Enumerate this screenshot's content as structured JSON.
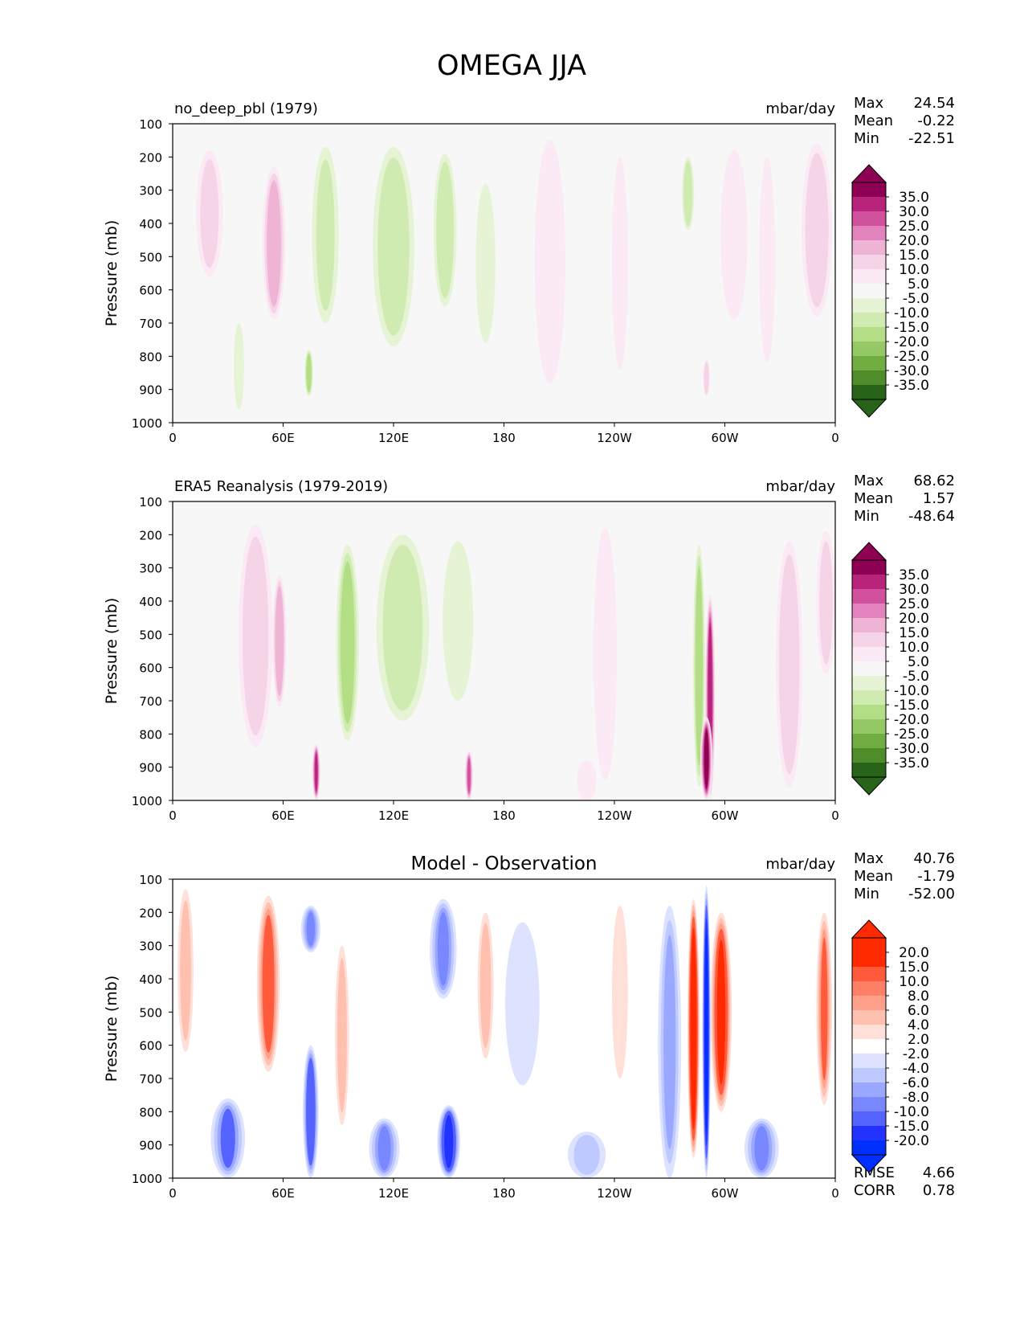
{
  "figure_title": "OMEGA JJA",
  "y_axis_label": "Pressure (mb)",
  "x_tick_labels": [
    "0",
    "60E",
    "120E",
    "180",
    "120W",
    "60W",
    "0"
  ],
  "y_tick_labels": [
    "100",
    "200",
    "300",
    "400",
    "500",
    "600",
    "700",
    "800",
    "900",
    "1000"
  ],
  "colors": {
    "panel_bg": "#f7f7f7",
    "pink_levels": [
      "#fbe9f3",
      "#f6d4e8",
      "#efb3d6",
      "#e283bd",
      "#d1519c",
      "#b8237c",
      "#8e0152"
    ],
    "green_levels": [
      "#e6f4d5",
      "#d0ebb2",
      "#b4de86",
      "#95c965",
      "#72ad42",
      "#4f8d2a",
      "#276419"
    ],
    "red_levels": [
      "#ffe0d8",
      "#ffc0b0",
      "#ffa08a",
      "#ff8066",
      "#ff5a3c",
      "#ff2a00"
    ],
    "blue_levels": [
      "#dde3ff",
      "#bdc9ff",
      "#9aa8ff",
      "#7a88ff",
      "#5563ff",
      "#2233ff",
      "#0030ff"
    ]
  },
  "chart_data": [
    {
      "type": "heatmap",
      "name": "model",
      "title_left": "no_deep_pbl (1979)",
      "title_center": "",
      "units": "mbar/day",
      "x_domain": [
        0,
        360
      ],
      "y_range_mb": [
        100,
        1000
      ],
      "stats": {
        "max_label": "Max",
        "max": "24.54",
        "mean_label": "Mean",
        "mean": "-0.22",
        "min_label": "Min",
        "min": "-22.51"
      },
      "colorbar": {
        "palette": "pinkgreen",
        "labels": [
          "35.0",
          "30.0",
          "25.0",
          "20.0",
          "15.0",
          "10.0",
          "5.0",
          "-5.0",
          "-10.0",
          "-15.0",
          "-20.0",
          "-25.0",
          "-30.0",
          "-35.0"
        ]
      },
      "features": [
        {
          "lon": 55,
          "p_top": 230,
          "p_bot": 690,
          "width": 10,
          "value": 19
        },
        {
          "lon": 20,
          "p_top": 180,
          "p_bot": 560,
          "width": 12,
          "value": 10
        },
        {
          "lon": 350,
          "p_top": 160,
          "p_bot": 680,
          "width": 14,
          "value": 11
        },
        {
          "lon": 305,
          "p_top": 180,
          "p_bot": 690,
          "width": 12,
          "value": 7
        },
        {
          "lon": 205,
          "p_top": 150,
          "p_bot": 880,
          "width": 14,
          "value": 7
        },
        {
          "lon": 243,
          "p_top": 200,
          "p_bot": 840,
          "width": 6,
          "value": 6
        },
        {
          "lon": 323,
          "p_top": 200,
          "p_bot": 820,
          "width": 6,
          "value": 6
        },
        {
          "lon": 83,
          "p_top": 170,
          "p_bot": 700,
          "width": 12,
          "value": -10
        },
        {
          "lon": 120,
          "p_top": 170,
          "p_bot": 770,
          "width": 20,
          "value": -12
        },
        {
          "lon": 148,
          "p_top": 190,
          "p_bot": 650,
          "width": 10,
          "value": -14
        },
        {
          "lon": 170,
          "p_top": 280,
          "p_bot": 760,
          "width": 8,
          "value": -6
        },
        {
          "lon": 280,
          "p_top": 200,
          "p_bot": 420,
          "width": 4,
          "value": -13
        },
        {
          "lon": 74,
          "p_top": 780,
          "p_bot": 920,
          "width": 2,
          "value": -16
        },
        {
          "lon": 36,
          "p_top": 700,
          "p_bot": 960,
          "width": 3,
          "value": -8
        },
        {
          "lon": 290,
          "p_top": 810,
          "p_bot": 920,
          "width": 1,
          "value": 14
        }
      ]
    },
    {
      "type": "heatmap",
      "name": "observation",
      "title_left": "ERA5 Reanalysis (1979-2019)",
      "title_center": "",
      "units": "mbar/day",
      "x_domain": [
        0,
        360
      ],
      "y_range_mb": [
        100,
        1000
      ],
      "stats": {
        "max_label": "Max",
        "max": "68.62",
        "mean_label": "Mean",
        "mean": "1.57",
        "min_label": "Min",
        "min": "-48.64"
      },
      "colorbar": {
        "palette": "pinkgreen",
        "labels": [
          "35.0",
          "30.0",
          "25.0",
          "20.0",
          "15.0",
          "10.0",
          "5.0",
          "-5.0",
          "-10.0",
          "-15.0",
          "-20.0",
          "-25.0",
          "-30.0",
          "-35.0"
        ]
      },
      "features": [
        {
          "lon": 45,
          "p_top": 170,
          "p_bot": 840,
          "width": 16,
          "value": 12
        },
        {
          "lon": 58,
          "p_top": 320,
          "p_bot": 720,
          "width": 5,
          "value": 17
        },
        {
          "lon": 335,
          "p_top": 220,
          "p_bot": 960,
          "width": 12,
          "value": 11
        },
        {
          "lon": 355,
          "p_top": 190,
          "p_bot": 620,
          "width": 8,
          "value": 10
        },
        {
          "lon": 235,
          "p_top": 180,
          "p_bot": 940,
          "width": 10,
          "value": 7
        },
        {
          "lon": 95,
          "p_top": 230,
          "p_bot": 820,
          "width": 10,
          "value": -16
        },
        {
          "lon": 125,
          "p_top": 200,
          "p_bot": 760,
          "width": 26,
          "value": -11
        },
        {
          "lon": 155,
          "p_top": 220,
          "p_bot": 700,
          "width": 14,
          "value": -7
        },
        {
          "lon": 286,
          "p_top": 230,
          "p_bot": 960,
          "width": 4,
          "value": -19
        },
        {
          "lon": 292,
          "p_top": 380,
          "p_bot": 1000,
          "width": 3,
          "value": 34
        },
        {
          "lon": 290,
          "p_top": 750,
          "p_bot": 1000,
          "width": 4,
          "value": 36
        },
        {
          "lon": 78,
          "p_top": 830,
          "p_bot": 1000,
          "width": 2,
          "value": 30
        },
        {
          "lon": 161,
          "p_top": 850,
          "p_bot": 1000,
          "width": 2,
          "value": 25
        },
        {
          "lon": 225,
          "p_top": 880,
          "p_bot": 1000,
          "width": 8,
          "value": 9
        }
      ]
    },
    {
      "type": "heatmap",
      "name": "difference",
      "title_left": "",
      "title_center": "Model - Observation",
      "units": "mbar/day",
      "x_domain": [
        0,
        360
      ],
      "y_range_mb": [
        100,
        1000
      ],
      "stats": {
        "max_label": "Max",
        "max": "40.76",
        "mean_label": "Mean",
        "mean": "-1.79",
        "min_label": "Min",
        "min": "-52.00"
      },
      "metrics": {
        "rmse_label": "RMSE",
        "rmse": "4.66",
        "corr_label": "CORR",
        "corr": "0.78"
      },
      "colorbar": {
        "palette": "redblue",
        "labels": [
          "20.0",
          "15.0",
          "10.0",
          "8.0",
          "6.0",
          "4.0",
          "2.0",
          "-2.0",
          "-4.0",
          "-6.0",
          "-8.0",
          "-10.0",
          "-15.0",
          "-20.0"
        ]
      },
      "features": [
        {
          "lon": 52,
          "p_top": 150,
          "p_bot": 680,
          "width": 10,
          "value": 12
        },
        {
          "lon": 7,
          "p_top": 130,
          "p_bot": 620,
          "width": 6,
          "value": 4
        },
        {
          "lon": 92,
          "p_top": 300,
          "p_bot": 840,
          "width": 5,
          "value": 5
        },
        {
          "lon": 170,
          "p_top": 200,
          "p_bot": 640,
          "width": 6,
          "value": 4
        },
        {
          "lon": 243,
          "p_top": 180,
          "p_bot": 700,
          "width": 6,
          "value": 3
        },
        {
          "lon": 283,
          "p_top": 160,
          "p_bot": 940,
          "width": 4,
          "value": 22
        },
        {
          "lon": 298,
          "p_top": 200,
          "p_bot": 800,
          "width": 9,
          "value": 17
        },
        {
          "lon": 354,
          "p_top": 200,
          "p_bot": 780,
          "width": 6,
          "value": 10
        },
        {
          "lon": 75,
          "p_top": 180,
          "p_bot": 320,
          "width": 8,
          "value": -8
        },
        {
          "lon": 147,
          "p_top": 160,
          "p_bot": 460,
          "width": 12,
          "value": -9
        },
        {
          "lon": 270,
          "p_top": 180,
          "p_bot": 1000,
          "width": 10,
          "value": -6
        },
        {
          "lon": 290,
          "p_top": 120,
          "p_bot": 1000,
          "width": 2,
          "value": -22
        },
        {
          "lon": 190,
          "p_top": 230,
          "p_bot": 720,
          "width": 16,
          "value": -3
        },
        {
          "lon": 30,
          "p_top": 760,
          "p_bot": 1000,
          "width": 16,
          "value": -10
        },
        {
          "lon": 75,
          "p_top": 600,
          "p_bot": 1000,
          "width": 6,
          "value": -14
        },
        {
          "lon": 150,
          "p_top": 780,
          "p_bot": 1000,
          "width": 10,
          "value": -16
        },
        {
          "lon": 115,
          "p_top": 820,
          "p_bot": 1000,
          "width": 14,
          "value": -8
        },
        {
          "lon": 320,
          "p_top": 820,
          "p_bot": 1000,
          "width": 16,
          "value": -9
        },
        {
          "lon": 225,
          "p_top": 860,
          "p_bot": 1000,
          "width": 18,
          "value": -5
        }
      ]
    }
  ]
}
